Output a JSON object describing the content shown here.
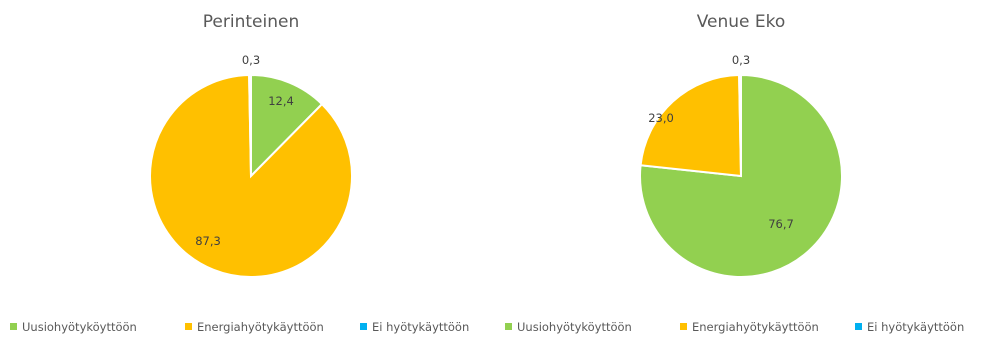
{
  "chart_data": [
    {
      "type": "pie",
      "title": "Perinteinen",
      "categories": [
        "Uusiohyötyköyttöön",
        "Energiahyötykäyttöön",
        "Ei hyötykäyttöön"
      ],
      "values": [
        12.4,
        87.3,
        0.3
      ],
      "value_labels": [
        "12,4",
        "87,3",
        "0,3"
      ],
      "colors": [
        "#92d050",
        "#ffc000",
        "#00b0f0"
      ],
      "legend": "bottom"
    },
    {
      "type": "pie",
      "title": "Venue Eko",
      "categories": [
        "Uusiohyötyköyttöön",
        "Energiahyötykäyttöön",
        "Ei hyötykäyttöön"
      ],
      "values": [
        76.7,
        23.0,
        0.3
      ],
      "value_labels": [
        "76,7",
        "23,0",
        "0,3"
      ],
      "colors": [
        "#92d050",
        "#ffc000",
        "#00b0f0"
      ],
      "legend": "bottom"
    }
  ]
}
